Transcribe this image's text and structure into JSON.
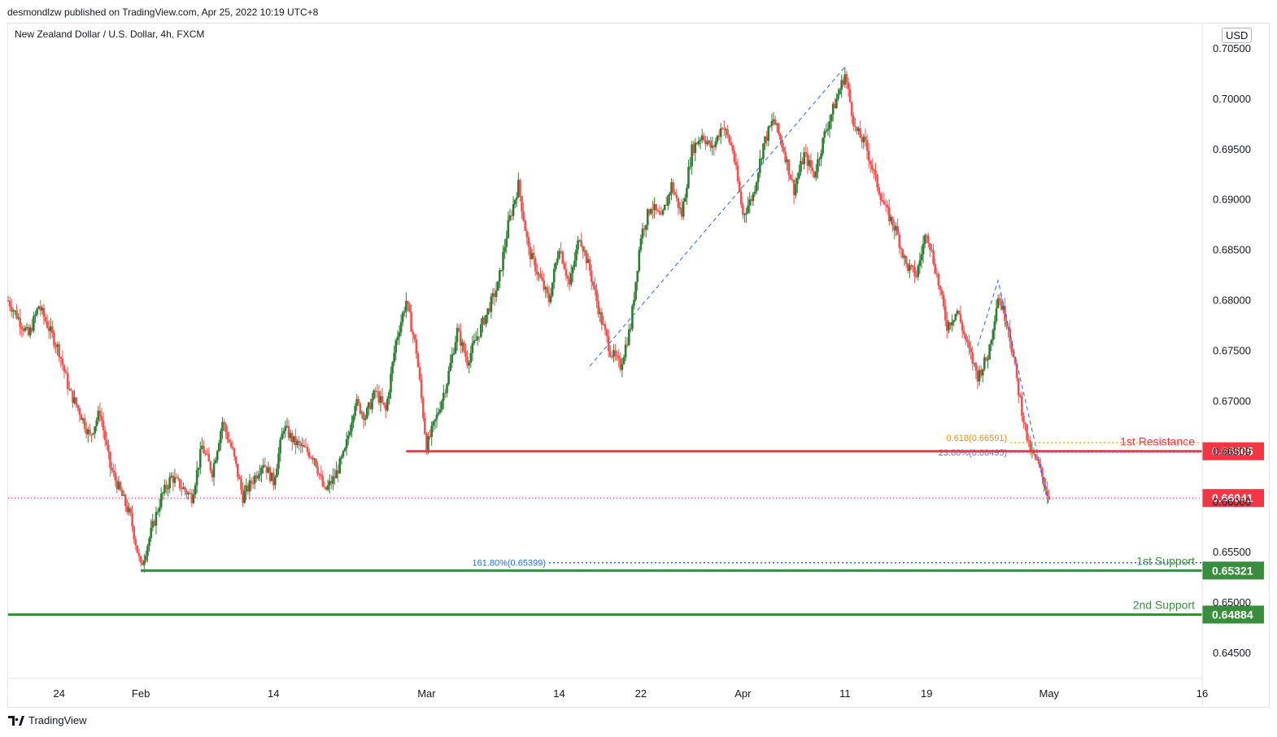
{
  "header": {
    "published": "desmondlzw published on TradingView.com, Apr 25, 2022 10:19 UTC+8"
  },
  "symbol": {
    "title": "New Zealand Dollar / U.S. Dollar, 4h, FXCM"
  },
  "currency_label": "USD",
  "footer": {
    "brand": "TradingView",
    "logo": "tradingview-logo-icon"
  },
  "colors": {
    "up": "#26a69a",
    "up_candle": "#2e7d32",
    "down": "#ef5350",
    "resistance": "#f23645",
    "support": "#388e3c",
    "fib_orange": "#f5a623",
    "fib_blue": "#2962ff",
    "current": "#f23645"
  },
  "chart_data": {
    "type": "candlestick",
    "title": "New Zealand Dollar / U.S. Dollar, 4h, FXCM",
    "xlabel": "",
    "ylabel": "",
    "ylim": [
      0.6425,
      0.7075
    ],
    "grid": false,
    "x_ticks": [
      "24",
      "Feb",
      "14",
      "Mar",
      "14",
      "22",
      "Apr",
      "11",
      "19",
      "May",
      "16"
    ],
    "y_ticks": [
      "0.64500",
      "0.65000",
      "0.65500",
      "0.66000",
      "0.66500",
      "0.67000",
      "0.67500",
      "0.68000",
      "0.68500",
      "0.69000",
      "0.69500",
      "0.70000",
      "0.70500"
    ],
    "current_price": {
      "value": 0.66041,
      "label": "0.66041"
    },
    "levels": [
      {
        "name": "1st Resistance",
        "value": 0.66505,
        "label": "0.66505"
      },
      {
        "name": "1st Support",
        "value": 0.65321,
        "label": "0.65321"
      },
      {
        "name": "2nd Support",
        "value": 0.64884,
        "label": "0.64884"
      }
    ],
    "fib_annotations": [
      {
        "label": "0.618(0.66591)",
        "value": 0.66591
      },
      {
        "label": "23.60%(0.66495)",
        "value": 0.66495
      },
      {
        "label": "161.80%(0.65399)",
        "value": 0.65399
      }
    ],
    "price_path": [
      [
        "2022-01-19",
        0.68
      ],
      [
        "2022-01-21",
        0.6765
      ],
      [
        "2022-01-22",
        0.6795
      ],
      [
        "2022-01-24",
        0.675
      ],
      [
        "2022-01-25",
        0.671
      ],
      [
        "2022-01-26",
        0.669
      ],
      [
        "2022-01-27",
        0.6665
      ],
      [
        "2022-01-28",
        0.669
      ],
      [
        "2022-01-29",
        0.6635
      ],
      [
        "2022-01-31",
        0.6585
      ],
      [
        "2022-02-01",
        0.6535
      ],
      [
        "2022-02-02",
        0.657
      ],
      [
        "2022-02-03",
        0.6605
      ],
      [
        "2022-02-04",
        0.6625
      ],
      [
        "2022-02-06",
        0.6605
      ],
      [
        "2022-02-07",
        0.6655
      ],
      [
        "2022-02-08",
        0.663
      ],
      [
        "2022-02-09",
        0.668
      ],
      [
        "2022-02-10",
        0.665
      ],
      [
        "2022-02-11",
        0.6605
      ],
      [
        "2022-02-13",
        0.664
      ],
      [
        "2022-02-14",
        0.662
      ],
      [
        "2022-02-15",
        0.6675
      ],
      [
        "2022-02-16",
        0.666
      ],
      [
        "2022-02-18",
        0.6645
      ],
      [
        "2022-02-19",
        0.661
      ],
      [
        "2022-02-20",
        0.6625
      ],
      [
        "2022-02-21",
        0.665
      ],
      [
        "2022-02-22",
        0.67
      ],
      [
        "2022-02-23",
        0.6685
      ],
      [
        "2022-02-24",
        0.671
      ],
      [
        "2022-02-25",
        0.669
      ],
      [
        "2022-02-26",
        0.676
      ],
      [
        "2022-02-27",
        0.68
      ],
      [
        "2022-02-28",
        0.675
      ],
      [
        "2022-03-01",
        0.6655
      ],
      [
        "2022-03-02",
        0.6685
      ],
      [
        "2022-03-03",
        0.672
      ],
      [
        "2022-03-04",
        0.677
      ],
      [
        "2022-03-05",
        0.674
      ],
      [
        "2022-03-06",
        0.6765
      ],
      [
        "2022-03-07",
        0.679
      ],
      [
        "2022-03-08",
        0.6815
      ],
      [
        "2022-03-09",
        0.6875
      ],
      [
        "2022-03-10",
        0.6915
      ],
      [
        "2022-03-11",
        0.685
      ],
      [
        "2022-03-12",
        0.6825
      ],
      [
        "2022-03-13",
        0.68
      ],
      [
        "2022-03-14",
        0.6855
      ],
      [
        "2022-03-15",
        0.6815
      ],
      [
        "2022-03-16",
        0.6865
      ],
      [
        "2022-03-17",
        0.683
      ],
      [
        "2022-03-18",
        0.6785
      ],
      [
        "2022-03-19",
        0.675
      ],
      [
        "2022-03-20",
        0.6735
      ],
      [
        "2022-03-21",
        0.6775
      ],
      [
        "2022-03-22",
        0.6865
      ],
      [
        "2022-03-23",
        0.6895
      ],
      [
        "2022-03-24",
        0.688
      ],
      [
        "2022-03-25",
        0.6915
      ],
      [
        "2022-03-26",
        0.6885
      ],
      [
        "2022-03-27",
        0.695
      ],
      [
        "2022-03-28",
        0.6965
      ],
      [
        "2022-03-29",
        0.695
      ],
      [
        "2022-03-30",
        0.6975
      ],
      [
        "2022-03-31",
        0.695
      ],
      [
        "2022-04-01",
        0.6885
      ],
      [
        "2022-04-02",
        0.6905
      ],
      [
        "2022-04-03",
        0.6955
      ],
      [
        "2022-04-04",
        0.698
      ],
      [
        "2022-04-05",
        0.695
      ],
      [
        "2022-04-06",
        0.691
      ],
      [
        "2022-04-07",
        0.6945
      ],
      [
        "2022-04-08",
        0.6925
      ],
      [
        "2022-04-09",
        0.6965
      ],
      [
        "2022-04-10",
        0.6995
      ],
      [
        "2022-04-11",
        0.7025
      ],
      [
        "2022-04-12",
        0.697
      ],
      [
        "2022-04-13",
        0.6955
      ],
      [
        "2022-04-14",
        0.692
      ],
      [
        "2022-04-15",
        0.689
      ],
      [
        "2022-04-16",
        0.687
      ],
      [
        "2022-04-17",
        0.6835
      ],
      [
        "2022-04-18",
        0.6825
      ],
      [
        "2022-04-19",
        0.687
      ],
      [
        "2022-04-20",
        0.6825
      ],
      [
        "2022-04-21",
        0.6775
      ],
      [
        "2022-04-22",
        0.679
      ],
      [
        "2022-04-23",
        0.6755
      ],
      [
        "2022-04-24",
        0.6725
      ],
      [
        "2022-04-25",
        0.6745
      ],
      [
        "2022-04-26",
        0.6805
      ],
      [
        "2022-04-27",
        0.6775
      ],
      [
        "2022-04-28",
        0.671
      ],
      [
        "2022-04-29",
        0.6655
      ],
      [
        "2022-04-30",
        0.6635
      ],
      [
        "2022-05-01",
        0.6604
      ]
    ]
  }
}
